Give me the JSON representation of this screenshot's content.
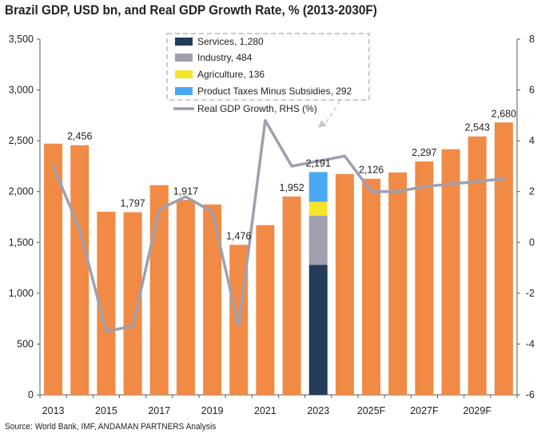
{
  "chart_data": {
    "type": "bar",
    "title": "Brazil GDP, USD bn, and Real GDP Growth Rate, % (2013-2030F)",
    "source": "Source: World Bank, IMF, ANDAMAN PARTNERS Analysis",
    "categories": [
      "2013",
      "2014",
      "2015",
      "2016",
      "2017",
      "2018",
      "2019",
      "2020",
      "2021",
      "2022",
      "2023",
      "2024F",
      "2025F",
      "2026F",
      "2027F",
      "2028F",
      "2029F",
      "2030F"
    ],
    "x_tick_labels": [
      "2013",
      "2015",
      "2017",
      "2019",
      "2021",
      "2023",
      "2025F",
      "2027F",
      "2029F"
    ],
    "gdp": [
      2472,
      2456,
      1802,
      1797,
      2063,
      1917,
      1873,
      1476,
      1670,
      1952,
      2191,
      2173,
      2126,
      2188,
      2297,
      2417,
      2543,
      2680
    ],
    "data_labels": {
      "1": "2,456",
      "3": "1,797",
      "5": "1,917",
      "7": "1,476",
      "9": "1,952",
      "10": "2,191",
      "12": "2,126",
      "14": "2,297",
      "16": "2,543",
      "17": "2,680"
    },
    "stacked_breakdown": {
      "category": "2023",
      "components": [
        {
          "name": "Services",
          "value": 1280,
          "color": "#243c5a"
        },
        {
          "name": "Industry",
          "value": 484,
          "color": "#a09fad"
        },
        {
          "name": "Agriculture",
          "value": 136,
          "color": "#f7e52a"
        },
        {
          "name": "Product Taxes Minus Subsidies",
          "value": 292,
          "color": "#4aa8f0"
        }
      ]
    },
    "growth": [
      3.0,
      0.5,
      -3.5,
      -3.3,
      1.3,
      1.8,
      1.2,
      -3.3,
      4.8,
      3.0,
      3.2,
      3.4,
      2.0,
      2.0,
      2.2,
      2.3,
      2.4,
      2.5
    ],
    "series": [
      {
        "name": "Real GDP Growth, RHS (%)",
        "values": [
          3.0,
          0.5,
          -3.5,
          -3.3,
          1.3,
          1.8,
          1.2,
          -3.3,
          4.8,
          3.0,
          3.2,
          3.4,
          2.0,
          2.0,
          2.2,
          2.3,
          2.4,
          2.5
        ],
        "color": "#9fa0ae"
      }
    ],
    "bar_color": "#f08a45",
    "y_left": {
      "min": 0,
      "max": 3500,
      "ticks": [
        "0",
        "500",
        "1,000",
        "1,500",
        "2,000",
        "2,500",
        "3,000",
        "3,500"
      ]
    },
    "y_right": {
      "min": -6,
      "max": 8,
      "ticks": [
        "-6",
        "-4",
        "-2",
        "0",
        "2",
        "4",
        "6",
        "8"
      ]
    },
    "legend_entries": [
      "Services, 1,280",
      "Industry, 484",
      "Agriculture, 136",
      "Product Taxes Minus Subsidies, 292",
      "Real GDP Growth, RHS (%)"
    ],
    "legend_placement": "top-center",
    "grid": false
  }
}
